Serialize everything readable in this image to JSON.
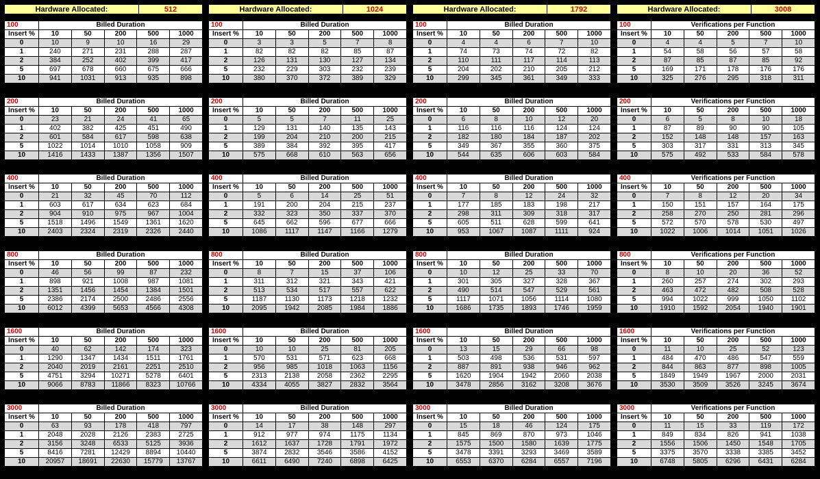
{
  "header_label": "Hardware Allocated:",
  "insert_header": "Insert %",
  "col_headers": [
    "10",
    "50",
    "200",
    "500",
    "1000"
  ],
  "row_labels": [
    "0",
    "1",
    "2",
    "5",
    "10"
  ],
  "panels": [
    {
      "hardware": "512",
      "title": "Billed Duration",
      "blocks": [
        {
          "size": "100",
          "rows": [
            [
              "10",
              "9",
              "10",
              "16",
              "29"
            ],
            [
              "240",
              "271",
              "231",
              "288",
              "287"
            ],
            [
              "384",
              "252",
              "402",
              "399",
              "417"
            ],
            [
              "697",
              "678",
              "660",
              "675",
              "666"
            ],
            [
              "941",
              "1031",
              "913",
              "935",
              "898"
            ]
          ]
        },
        {
          "size": "200",
          "rows": [
            [
              "23",
              "21",
              "24",
              "41",
              "65"
            ],
            [
              "402",
              "382",
              "425",
              "451",
              "490"
            ],
            [
              "601",
              "584",
              "617",
              "598",
              "638"
            ],
            [
              "1022",
              "1014",
              "1010",
              "1058",
              "909"
            ],
            [
              "1416",
              "1433",
              "1387",
              "1356",
              "1507"
            ]
          ]
        },
        {
          "size": "400",
          "rows": [
            [
              "21",
              "32",
              "45",
              "70",
              "112"
            ],
            [
              "603",
              "617",
              "634",
              "623",
              "684"
            ],
            [
              "904",
              "910",
              "975",
              "967",
              "1004"
            ],
            [
              "1518",
              "1496",
              "1549",
              "1361",
              "1620"
            ],
            [
              "2403",
              "2324",
              "2319",
              "2326",
              "2440"
            ]
          ]
        },
        {
          "size": "800",
          "rows": [
            [
              "46",
              "56",
              "99",
              "87",
              "232"
            ],
            [
              "898",
              "921",
              "1008",
              "987",
              "1081"
            ],
            [
              "1351",
              "1456",
              "1454",
              "1384",
              "1501"
            ],
            [
              "2386",
              "2174",
              "2500",
              "2486",
              "2556"
            ],
            [
              "6012",
              "4399",
              "5653",
              "4566",
              "4308"
            ]
          ]
        },
        {
          "size": "1600",
          "rows": [
            [
              "40",
              "62",
              "142",
              "174",
              "323"
            ],
            [
              "1290",
              "1347",
              "1434",
              "1511",
              "1761"
            ],
            [
              "2040",
              "2019",
              "2161",
              "2251",
              "2510"
            ],
            [
              "4751",
              "3294",
              "10271",
              "5278",
              "6401"
            ],
            [
              "9066",
              "8783",
              "11866",
              "8323",
              "10766"
            ]
          ]
        },
        {
          "size": "3000",
          "rows": [
            [
              "63",
              "93",
              "178",
              "418",
              "797"
            ],
            [
              "2048",
              "2028",
              "2126",
              "2383",
              "2725"
            ],
            [
              "3156",
              "3248",
              "6533",
              "5125",
              "3936"
            ],
            [
              "8416",
              "7281",
              "12429",
              "8894",
              "10440"
            ],
            [
              "20957",
              "18691",
              "22630",
              "15779",
              "13767"
            ]
          ]
        }
      ]
    },
    {
      "hardware": "1024",
      "title": "Billed Duration",
      "blocks": [
        {
          "size": "100",
          "rows": [
            [
              "3",
              "3",
              "5",
              "7",
              "8"
            ],
            [
              "82",
              "82",
              "82",
              "85",
              "87"
            ],
            [
              "126",
              "131",
              "130",
              "127",
              "134"
            ],
            [
              "232",
              "229",
              "303",
              "232",
              "239"
            ],
            [
              "380",
              "370",
              "372",
              "389",
              "329"
            ]
          ]
        },
        {
          "size": "200",
          "rows": [
            [
              "5",
              "5",
              "7",
              "11",
              "25"
            ],
            [
              "129",
              "131",
              "140",
              "135",
              "143"
            ],
            [
              "199",
              "204",
              "210",
              "200",
              "215"
            ],
            [
              "389",
              "384",
              "392",
              "395",
              "417"
            ],
            [
              "575",
              "668",
              "610",
              "563",
              "656"
            ]
          ]
        },
        {
          "size": "400",
          "rows": [
            [
              "5",
              "6",
              "14",
              "25",
              "51"
            ],
            [
              "191",
              "200",
              "204",
              "215",
              "237"
            ],
            [
              "332",
              "323",
              "350",
              "337",
              "370"
            ],
            [
              "645",
              "662",
              "596",
              "677",
              "666"
            ],
            [
              "1086",
              "1117",
              "1147",
              "1166",
              "1279"
            ]
          ]
        },
        {
          "size": "800",
          "rows": [
            [
              "8",
              "7",
              "15",
              "37",
              "106"
            ],
            [
              "311",
              "312",
              "321",
              "343",
              "421"
            ],
            [
              "513",
              "534",
              "517",
              "557",
              "622"
            ],
            [
              "1187",
              "1130",
              "1173",
              "1218",
              "1232"
            ],
            [
              "2095",
              "1942",
              "2085",
              "1984",
              "1886"
            ]
          ]
        },
        {
          "size": "1600",
          "rows": [
            [
              "10",
              "10",
              "25",
              "81",
              "205"
            ],
            [
              "570",
              "531",
              "571",
              "623",
              "668"
            ],
            [
              "956",
              "985",
              "1018",
              "1063",
              "1156"
            ],
            [
              "2313",
              "2138",
              "2058",
              "2362",
              "2295"
            ],
            [
              "4334",
              "4055",
              "3827",
              "2832",
              "3564"
            ]
          ]
        },
        {
          "size": "3000",
          "rows": [
            [
              "14",
              "17",
              "38",
              "148",
              "297"
            ],
            [
              "912",
              "977",
              "974",
              "1175",
              "1134"
            ],
            [
              "1612",
              "1637",
              "1728",
              "1791",
              "1972"
            ],
            [
              "3874",
              "2832",
              "3546",
              "3586",
              "4152"
            ],
            [
              "6611",
              "6490",
              "7240",
              "6898",
              "6425"
            ]
          ]
        }
      ]
    },
    {
      "hardware": "1792",
      "title": "Billed Duration",
      "blocks": [
        {
          "size": "100",
          "rows": [
            [
              "4",
              "4",
              "6",
              "7",
              "10"
            ],
            [
              "74",
              "73",
              "74",
              "72",
              "82"
            ],
            [
              "110",
              "111",
              "117",
              "114",
              "113"
            ],
            [
              "204",
              "202",
              "210",
              "205",
              "212"
            ],
            [
              "299",
              "345",
              "361",
              "349",
              "333"
            ]
          ]
        },
        {
          "size": "200",
          "rows": [
            [
              "6",
              "8",
              "10",
              "12",
              "20"
            ],
            [
              "116",
              "116",
              "116",
              "124",
              "124"
            ],
            [
              "182",
              "180",
              "184",
              "187",
              "202"
            ],
            [
              "349",
              "367",
              "355",
              "360",
              "375"
            ],
            [
              "544",
              "635",
              "606",
              "603",
              "584"
            ]
          ]
        },
        {
          "size": "400",
          "rows": [
            [
              "7",
              "8",
              "12",
              "24",
              "32"
            ],
            [
              "177",
              "185",
              "183",
              "198",
              "217"
            ],
            [
              "298",
              "311",
              "309",
              "318",
              "317"
            ],
            [
              "605",
              "511",
              "628",
              "599",
              "641"
            ],
            [
              "953",
              "1067",
              "1087",
              "1111",
              "924"
            ]
          ]
        },
        {
          "size": "800",
          "rows": [
            [
              "10",
              "12",
              "25",
              "33",
              "70"
            ],
            [
              "301",
              "305",
              "327",
              "328",
              "367"
            ],
            [
              "490",
              "514",
              "547",
              "529",
              "561"
            ],
            [
              "1117",
              "1071",
              "1056",
              "1114",
              "1080"
            ],
            [
              "1686",
              "1735",
              "1893",
              "1746",
              "1959"
            ]
          ]
        },
        {
          "size": "1600",
          "rows": [
            [
              "13",
              "15",
              "29",
              "66",
              "98"
            ],
            [
              "503",
              "498",
              "536",
              "531",
              "597"
            ],
            [
              "887",
              "891",
              "938",
              "946",
              "962"
            ],
            [
              "1620",
              "1904",
              "1942",
              "2060",
              "2038"
            ],
            [
              "3478",
              "2856",
              "3162",
              "3208",
              "3676"
            ]
          ]
        },
        {
          "size": "3000",
          "rows": [
            [
              "15",
              "18",
              "46",
              "124",
              "175"
            ],
            [
              "845",
              "869",
              "870",
              "973",
              "1046"
            ],
            [
              "1575",
              "1500",
              "1580",
              "1639",
              "1775"
            ],
            [
              "3478",
              "3391",
              "3293",
              "3469",
              "3589"
            ],
            [
              "6553",
              "6370",
              "6284",
              "6557",
              "7196"
            ]
          ]
        }
      ]
    },
    {
      "hardware": "3008",
      "title": "Verifications per Function",
      "blocks": [
        {
          "size": "100",
          "rows": [
            [
              "4",
              "4",
              "5",
              "7",
              "10"
            ],
            [
              "54",
              "58",
              "56",
              "57",
              "58"
            ],
            [
              "87",
              "85",
              "87",
              "85",
              "92"
            ],
            [
              "169",
              "171",
              "178",
              "176",
              "176"
            ],
            [
              "325",
              "276",
              "295",
              "318",
              "311"
            ]
          ]
        },
        {
          "size": "200",
          "rows": [
            [
              "6",
              "5",
              "8",
              "10",
              "18"
            ],
            [
              "87",
              "89",
              "90",
              "90",
              "105"
            ],
            [
              "152",
              "148",
              "148",
              "157",
              "163"
            ],
            [
              "303",
              "317",
              "331",
              "313",
              "345"
            ],
            [
              "575",
              "492",
              "533",
              "584",
              "578"
            ]
          ]
        },
        {
          "size": "400",
          "rows": [
            [
              "7",
              "8",
              "12",
              "20",
              "34"
            ],
            [
              "150",
              "151",
              "157",
              "164",
              "175"
            ],
            [
              "258",
              "270",
              "250",
              "281",
              "296"
            ],
            [
              "572",
              "570",
              "578",
              "530",
              "497"
            ],
            [
              "1022",
              "1006",
              "1014",
              "1051",
              "1026"
            ]
          ]
        },
        {
          "size": "800",
          "rows": [
            [
              "8",
              "10",
              "20",
              "36",
              "52"
            ],
            [
              "260",
              "257",
              "274",
              "302",
              "293"
            ],
            [
              "463",
              "472",
              "482",
              "508",
              "528"
            ],
            [
              "994",
              "1022",
              "999",
              "1050",
              "1102"
            ],
            [
              "1910",
              "1592",
              "2054",
              "1940",
              "1901"
            ]
          ]
        },
        {
          "size": "1600",
          "rows": [
            [
              "11",
              "10",
              "25",
              "52",
              "123"
            ],
            [
              "484",
              "470",
              "486",
              "547",
              "559"
            ],
            [
              "844",
              "863",
              "877",
              "898",
              "1005"
            ],
            [
              "1849",
              "1949",
              "1967",
              "2000",
              "2031"
            ],
            [
              "3530",
              "3509",
              "3526",
              "3245",
              "3674"
            ]
          ]
        },
        {
          "size": "3000",
          "rows": [
            [
              "11",
              "15",
              "33",
              "119",
              "172"
            ],
            [
              "849",
              "834",
              "826",
              "941",
              "1038"
            ],
            [
              "1556",
              "1506",
              "1450",
              "1548",
              "1705"
            ],
            [
              "3375",
              "3570",
              "3338",
              "3385",
              "3452"
            ],
            [
              "6748",
              "5805",
              "6296",
              "6431",
              "6284"
            ]
          ]
        }
      ]
    }
  ]
}
